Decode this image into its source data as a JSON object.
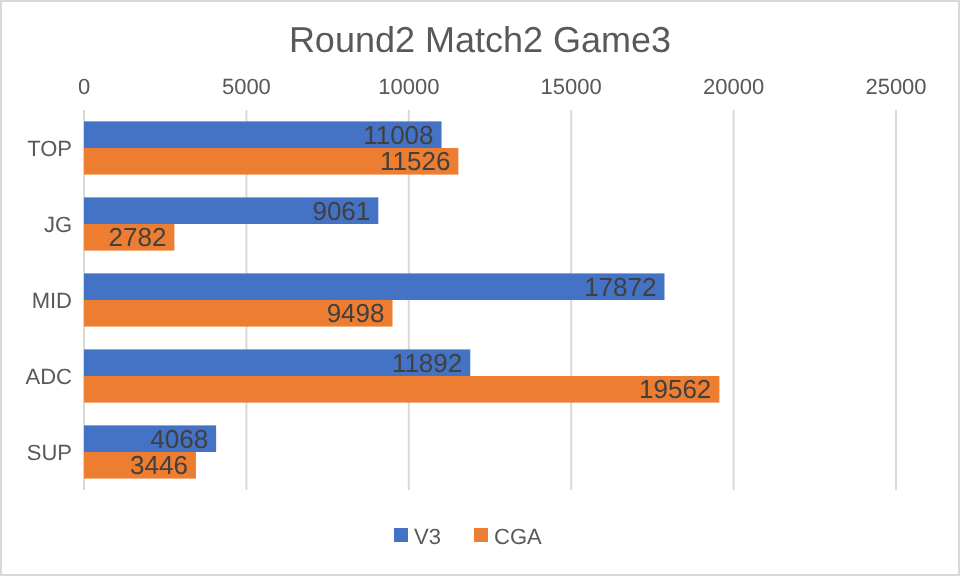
{
  "chart_data": {
    "type": "bar",
    "orientation": "horizontal",
    "title": "Round2 Match2 Game3",
    "categories": [
      "TOP",
      "JG",
      "MID",
      "ADC",
      "SUP"
    ],
    "series": [
      {
        "name": "V3",
        "color": "#4472c4",
        "values": [
          11008,
          9061,
          17872,
          11892,
          4068
        ]
      },
      {
        "name": "CGA",
        "color": "#ed7d31",
        "values": [
          11526,
          2782,
          9498,
          19562,
          3446
        ]
      }
    ],
    "xlim": [
      0,
      25000
    ],
    "xticks": [
      0,
      5000,
      10000,
      15000,
      20000,
      25000
    ],
    "grid": "x",
    "legend": "bottom",
    "data_labels": true
  }
}
